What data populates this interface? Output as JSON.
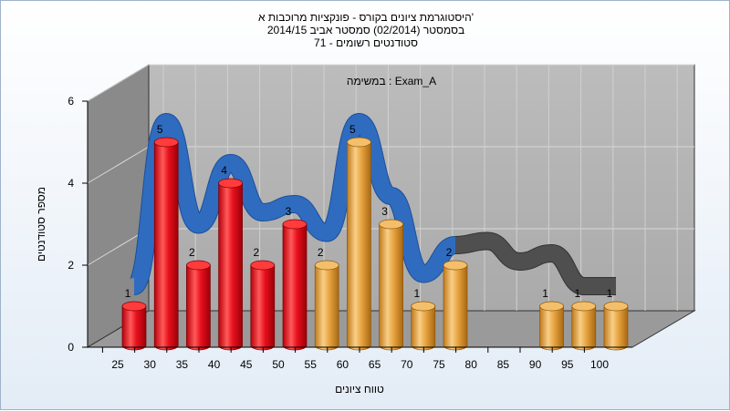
{
  "chart_data": {
    "type": "bar",
    "title_lines": [
      "היסטוגרמת ציונים בקורס - פונקציות מרוכבות א'",
      "בסמסטר (02/2014) סמסטר אביב 2014/15",
      "סטודנטים רשומים - 71"
    ],
    "subtitle": "במשימה : Exam_A",
    "xlabel": "טווח ציונים",
    "ylabel": "מספר סטודנטים",
    "categories": [
      "25",
      "30",
      "35",
      "40",
      "45",
      "50",
      "55",
      "60",
      "65",
      "70",
      "75",
      "80",
      "85",
      "90",
      "95",
      "100"
    ],
    "values": [
      1,
      5,
      2,
      4,
      2,
      3,
      2,
      5,
      3,
      1,
      2,
      0,
      0,
      1,
      1,
      1
    ],
    "bar_colors": [
      "red",
      "red",
      "red",
      "red",
      "red",
      "red",
      "orange",
      "orange",
      "orange",
      "orange",
      "orange",
      "orange",
      "orange",
      "orange",
      "orange",
      "orange"
    ],
    "distribution_curve": [
      1.0,
      5.0,
      2.5,
      4.0,
      2.8,
      3.0,
      2.3,
      5.0,
      3.2,
      1.3,
      2.0,
      2.1,
      1.6,
      1.8,
      1.0,
      1.0
    ],
    "yticks": [
      0,
      2,
      4,
      6
    ],
    "ylim": [
      0,
      6
    ],
    "grid": true,
    "colors": {
      "red_bar": "#e8101c",
      "orange_bar": "#e8a440",
      "curve": "#2f6cc0",
      "curve_tail": "#4f4f4f",
      "back_wall": "#b5b5b5",
      "side_wall": "#8a8a8a",
      "floor": "#9a9a9a"
    }
  }
}
